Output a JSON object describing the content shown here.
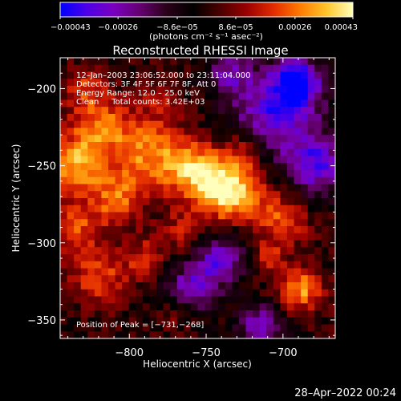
{
  "chart_data": {
    "type": "heatmap",
    "title": "Reconstructed RHESSI Image",
    "xlabel": "Heliocentric X (arcsec)",
    "ylabel": "Heliocentric Y (arcsec)",
    "xlim": [
      -845,
      -666
    ],
    "ylim": [
      -362,
      -180
    ],
    "x_ticks": [
      -800,
      -750,
      -700
    ],
    "x_tick_labels": [
      "−800",
      "−750",
      "−700"
    ],
    "y_ticks": [
      -200,
      -250,
      -300,
      -350
    ],
    "y_tick_labels": [
      "−200",
      "−250",
      "−300",
      "−350"
    ],
    "colorbar": {
      "min": -0.00043,
      "max": 0.00043,
      "colors": [
        "#0000ff",
        "#4d00e6",
        "#7a00c0",
        "#650070",
        "#2a0018",
        "#000000",
        "#4a0000",
        "#990000",
        "#e22a00",
        "#ff7a00",
        "#ffc42a",
        "#ffffbb"
      ],
      "tick_values": [
        -0.00043,
        -0.00026,
        -8.6e-05,
        8.6e-05,
        0.00026,
        0.00043
      ],
      "tick_labels": [
        "−0.00043",
        "−0.00026",
        "−8.6e−05",
        "8.6e−05",
        "0.00026",
        "0.00043"
      ],
      "unit_label": "(photons cm⁻² s⁻¹ asec⁻²)"
    },
    "peak": [
      -731,
      -268
    ],
    "annotations": [
      "12–Jan–2003 23:06:52.000 to 23:11:04.000",
      "Detectors: 3F 4F 5F 6F 7F 8F, Att 0",
      "Energy Range: 12.0 – 25.0 keV",
      "Clean     Total counts: 3.42E+03",
      "Position of Peak = [−731,−268]"
    ],
    "blobs": [
      {
        "x": -735,
        "y": -265,
        "r": 15,
        "v": 0.00043
      },
      {
        "x": -760,
        "y": -252,
        "r": 13,
        "v": 0.0003
      },
      {
        "x": -790,
        "y": -240,
        "r": 16,
        "v": 0.00028
      },
      {
        "x": -835,
        "y": -248,
        "r": 14,
        "v": 0.00032
      },
      {
        "x": -818,
        "y": -222,
        "r": 12,
        "v": 0.00022
      },
      {
        "x": -830,
        "y": -200,
        "r": 10,
        "v": 0.00018
      },
      {
        "x": -808,
        "y": -272,
        "r": 12,
        "v": 0.00024
      },
      {
        "x": -835,
        "y": -290,
        "r": 12,
        "v": 0.0002
      },
      {
        "x": -820,
        "y": -322,
        "r": 13,
        "v": 0.00021
      },
      {
        "x": -790,
        "y": -310,
        "r": 10,
        "v": 0.00016
      },
      {
        "x": -765,
        "y": -292,
        "r": 10,
        "v": 0.00014
      },
      {
        "x": -700,
        "y": -285,
        "r": 12,
        "v": 0.00022
      },
      {
        "x": -688,
        "y": -330,
        "r": 10,
        "v": 0.0003
      },
      {
        "x": -710,
        "y": -310,
        "r": 8,
        "v": 0.00015
      },
      {
        "x": -780,
        "y": -205,
        "r": 9,
        "v": 0.00012
      },
      {
        "x": -725,
        "y": -238,
        "r": 9,
        "v": 0.00014
      },
      {
        "x": -770,
        "y": -345,
        "r": 8,
        "v": 0.00012
      },
      {
        "x": -705,
        "y": -215,
        "r": 20,
        "v": -0.00034
      },
      {
        "x": -678,
        "y": -250,
        "r": 14,
        "v": -0.00032
      },
      {
        "x": -740,
        "y": -310,
        "r": 12,
        "v": -0.0003
      },
      {
        "x": -715,
        "y": -355,
        "r": 10,
        "v": -0.0003
      },
      {
        "x": -760,
        "y": -330,
        "r": 12,
        "v": -0.00028
      },
      {
        "x": -690,
        "y": -195,
        "r": 11,
        "v": -0.00036
      },
      {
        "x": -735,
        "y": -190,
        "r": 10,
        "v": -0.00022
      }
    ]
  },
  "footer": {
    "timestamp": "28–Apr–2022 00:24"
  }
}
